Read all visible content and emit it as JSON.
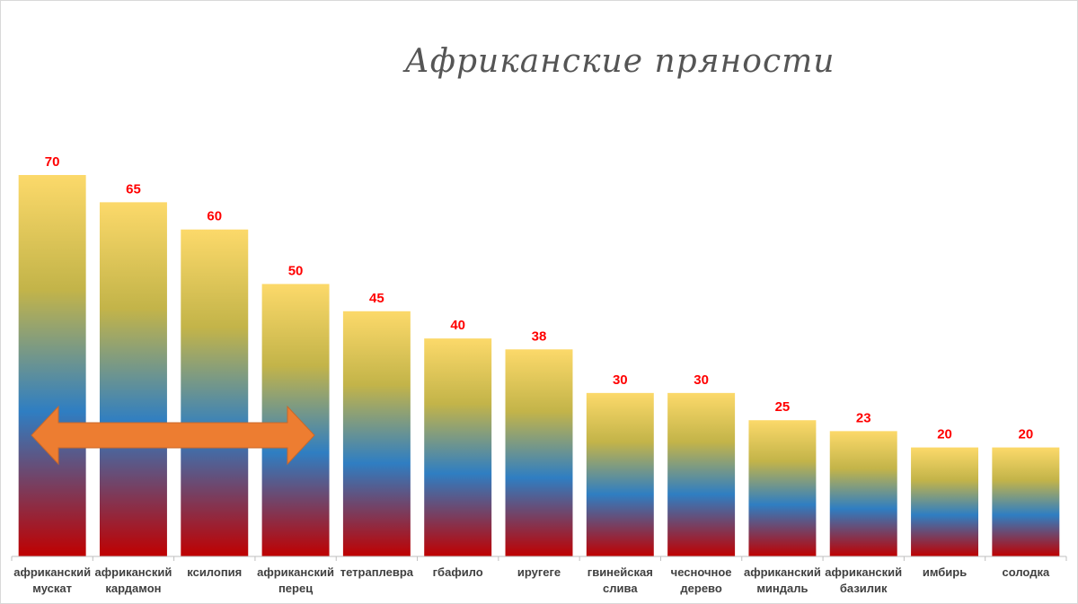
{
  "chart_data": {
    "type": "bar",
    "title": "Африканские пряности",
    "categories": [
      [
        "африканский",
        "мускат"
      ],
      [
        "африканский",
        "кардамон"
      ],
      [
        "ксилопия"
      ],
      [
        "африканский",
        "перец"
      ],
      [
        "тетраплевра"
      ],
      [
        "гбафило"
      ],
      [
        "иругеге"
      ],
      [
        "гвинейская",
        "слива"
      ],
      [
        "чесночное",
        "дерево"
      ],
      [
        "африканский",
        "миндаль"
      ],
      [
        "африканский",
        "базилик"
      ],
      [
        "имбирь"
      ],
      [
        "солодка"
      ]
    ],
    "values": [
      70,
      65,
      60,
      50,
      45,
      40,
      38,
      30,
      30,
      25,
      23,
      20,
      20
    ],
    "ylim": [
      0,
      70
    ],
    "xlabel": "",
    "ylabel": "",
    "grid": false,
    "legend": "none",
    "colors": {
      "gradient_top": "#fcd96a",
      "gradient_mid_yellow": "#c3b449",
      "gradient_blue": "#2f7ec2",
      "gradient_bottom": "#c00000",
      "value_label": "#ff0000",
      "category_label": "#404040",
      "arrow": "#ed7d31",
      "axis": "#bfbfbf"
    },
    "annotations": [
      {
        "type": "double-arrow",
        "from_category": 0,
        "to_category": 3
      }
    ]
  }
}
